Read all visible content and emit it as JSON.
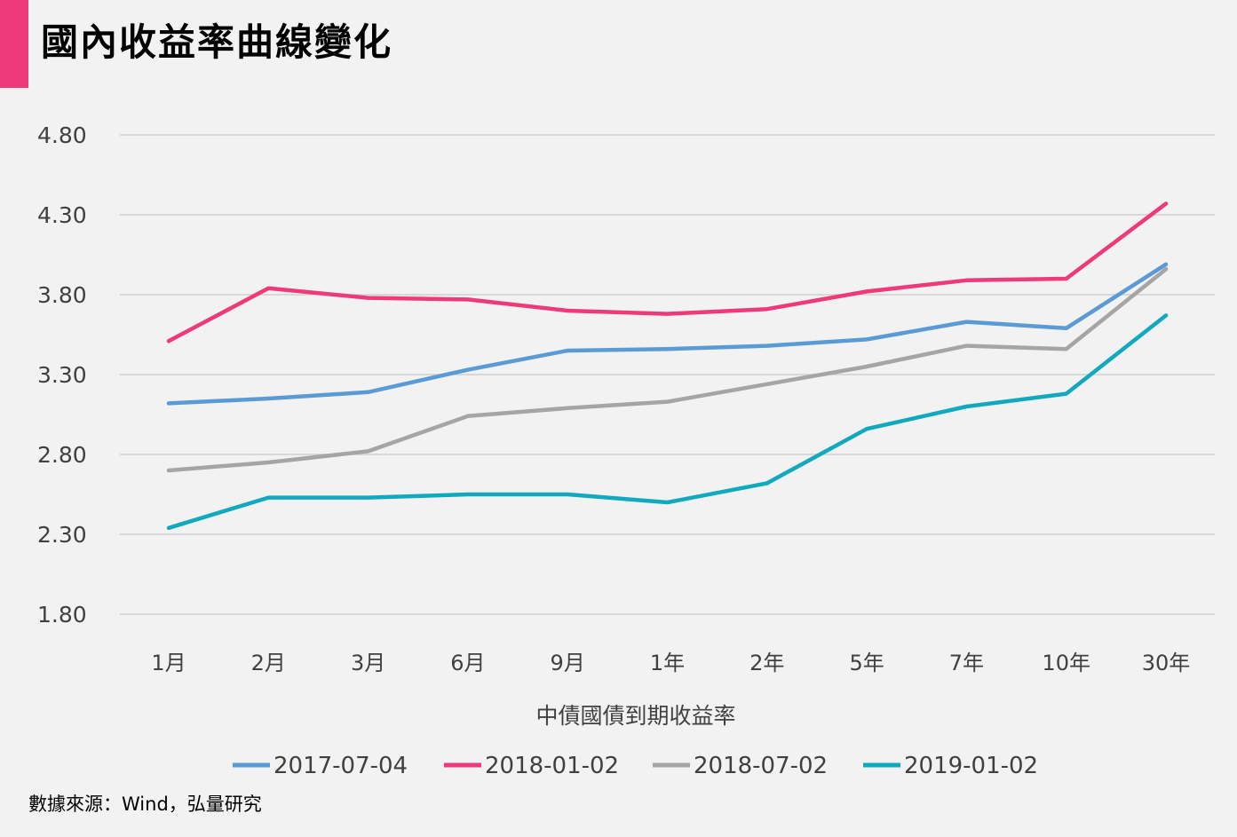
{
  "title": "國內收益率曲線變化",
  "source": "數據來源：Wind，弘量研究",
  "chart_data": {
    "type": "line",
    "title": "國內收益率曲線變化",
    "xlabel": "中債國債到期收益率",
    "ylabel": "",
    "categories": [
      "1月",
      "2月",
      "3月",
      "6月",
      "9月",
      "1年",
      "2年",
      "5年",
      "7年",
      "10年",
      "30年"
    ],
    "yticks": [
      "4.80",
      "4.30",
      "3.80",
      "3.30",
      "2.80",
      "2.30",
      "1.80"
    ],
    "ylim": [
      1.8,
      4.8
    ],
    "grid": "horizontal",
    "legend_position": "bottom",
    "series": [
      {
        "name": "2017-07-04",
        "color": "#5b9bd5",
        "values": [
          3.12,
          3.15,
          3.19,
          3.33,
          3.45,
          3.46,
          3.48,
          3.52,
          3.63,
          3.59,
          3.99
        ]
      },
      {
        "name": "2018-01-02",
        "color": "#ee3a7b",
        "values": [
          3.51,
          3.84,
          3.78,
          3.77,
          3.7,
          3.68,
          3.71,
          3.82,
          3.89,
          3.9,
          4.37
        ]
      },
      {
        "name": "2018-07-02",
        "color": "#a5a5a5",
        "values": [
          2.7,
          2.75,
          2.82,
          3.04,
          3.09,
          3.13,
          3.24,
          3.35,
          3.48,
          3.46,
          3.96
        ]
      },
      {
        "name": "2019-01-02",
        "color": "#10a9bd",
        "values": [
          2.34,
          2.53,
          2.53,
          2.55,
          2.55,
          2.5,
          2.62,
          2.96,
          3.1,
          3.18,
          3.67
        ]
      }
    ]
  }
}
